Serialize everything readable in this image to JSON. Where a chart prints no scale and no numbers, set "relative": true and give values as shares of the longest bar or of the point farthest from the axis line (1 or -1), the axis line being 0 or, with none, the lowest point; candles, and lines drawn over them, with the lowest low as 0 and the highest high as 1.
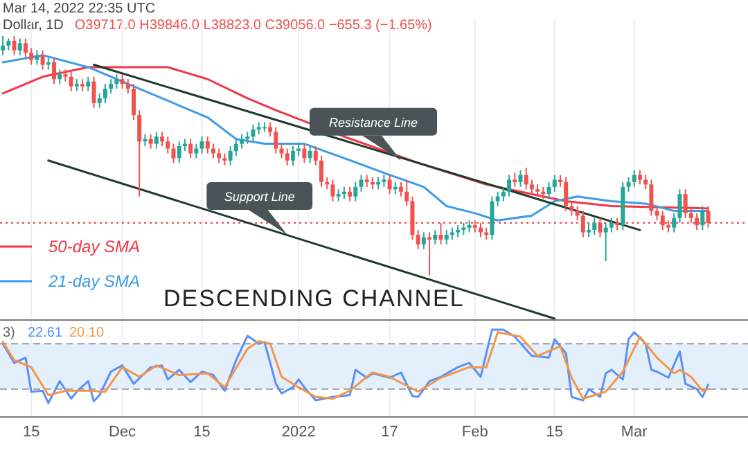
{
  "chart_data": [
    {
      "type": "candlestick",
      "title": "Dollar, 1D",
      "subtitle": "O39717.0 H39846.0 L38823.0 C39056.0 −655.3 (−1.65%)",
      "relative": true,
      "tick_labels": false,
      "grid": "x",
      "legend": "bottom left",
      "xlim": [
        "2021-11-09T12:00",
        "2022-03-21"
      ],
      "xticks": [
        {
          "value": "2021-11-15",
          "label": null
        },
        {
          "value": "2021-12-01",
          "label": null
        },
        {
          "value": "2021-12-15",
          "label": null
        },
        {
          "value": "2022-01-01",
          "label": null
        },
        {
          "value": "2022-01-17",
          "label": null
        },
        {
          "value": "2022-02-01",
          "label": null
        },
        {
          "value": "2022-02-15",
          "label": null
        },
        {
          "value": "2022-03-01",
          "label": null
        }
      ],
      "x": [
        "2021-11-10",
        "2021-11-11",
        "2021-11-12",
        "2021-11-13",
        "2021-11-14",
        "2021-11-15",
        "2021-11-16",
        "2021-11-17",
        "2021-11-18",
        "2021-11-19",
        "2021-11-20",
        "2021-11-21",
        "2021-11-22",
        "2021-11-23",
        "2021-11-24",
        "2021-11-25",
        "2021-11-26",
        "2021-11-27",
        "2021-11-28",
        "2021-11-29",
        "2021-11-30",
        "2021-12-01",
        "2021-12-02",
        "2021-12-03",
        "2021-12-04",
        "2021-12-05",
        "2021-12-06",
        "2021-12-07",
        "2021-12-08",
        "2021-12-09",
        "2021-12-10",
        "2021-12-11",
        "2021-12-12",
        "2021-12-13",
        "2021-12-14",
        "2021-12-15",
        "2021-12-16",
        "2021-12-17",
        "2021-12-18",
        "2021-12-19",
        "2021-12-20",
        "2021-12-21",
        "2021-12-22",
        "2021-12-23",
        "2021-12-24",
        "2021-12-25",
        "2021-12-26",
        "2021-12-27",
        "2021-12-28",
        "2021-12-29",
        "2021-12-30",
        "2021-12-31",
        "2022-01-01",
        "2022-01-02",
        "2022-01-03",
        "2022-01-04",
        "2022-01-05",
        "2022-01-06",
        "2022-01-07",
        "2022-01-08",
        "2022-01-09",
        "2022-01-10",
        "2022-01-11",
        "2022-01-12",
        "2022-01-13",
        "2022-01-14",
        "2022-01-15",
        "2022-01-16",
        "2022-01-17",
        "2022-01-18",
        "2022-01-19",
        "2022-01-20",
        "2022-01-21",
        "2022-01-22",
        "2022-01-23",
        "2022-01-24",
        "2022-01-25",
        "2022-01-26",
        "2022-01-27",
        "2022-01-28",
        "2022-01-29",
        "2022-01-30",
        "2022-01-31",
        "2022-02-01",
        "2022-02-02",
        "2022-02-03",
        "2022-02-04",
        "2022-02-05",
        "2022-02-06",
        "2022-02-07",
        "2022-02-08",
        "2022-02-09",
        "2022-02-10",
        "2022-02-11",
        "2022-02-12",
        "2022-02-13",
        "2022-02-14",
        "2022-02-15",
        "2022-02-16",
        "2022-02-17",
        "2022-02-18",
        "2022-02-19",
        "2022-02-20",
        "2022-02-21",
        "2022-02-22",
        "2022-02-23",
        "2022-02-24",
        "2022-02-25",
        "2022-02-26",
        "2022-02-27",
        "2022-02-28",
        "2022-03-01",
        "2022-03-02",
        "2022-03-03",
        "2022-03-04",
        "2022-03-05",
        "2022-03-06",
        "2022-03-07",
        "2022-03-08",
        "2022-03-09",
        "2022-03-10",
        "2022-03-11",
        "2022-03-12",
        "2022-03-13",
        "2022-03-14"
      ],
      "ohlc": [
        [
          0.94,
          1.0,
          0.92,
          0.96
        ],
        [
          0.96,
          0.99,
          0.94,
          0.98
        ],
        [
          0.98,
          1.0,
          0.92,
          0.94
        ],
        [
          0.94,
          0.99,
          0.92,
          0.97
        ],
        [
          0.97,
          0.99,
          0.91,
          0.93
        ],
        [
          0.93,
          0.95,
          0.88,
          0.9
        ],
        [
          0.9,
          0.94,
          0.88,
          0.92
        ],
        [
          0.92,
          0.94,
          0.86,
          0.88
        ],
        [
          0.88,
          0.91,
          0.86,
          0.89
        ],
        [
          0.89,
          0.91,
          0.8,
          0.82
        ],
        [
          0.82,
          0.86,
          0.8,
          0.84
        ],
        [
          0.84,
          0.86,
          0.81,
          0.83
        ],
        [
          0.83,
          0.85,
          0.77,
          0.79
        ],
        [
          0.79,
          0.82,
          0.77,
          0.8
        ],
        [
          0.8,
          0.82,
          0.77,
          0.79
        ],
        [
          0.79,
          0.83,
          0.77,
          0.81
        ],
        [
          0.81,
          0.83,
          0.7,
          0.72
        ],
        [
          0.72,
          0.76,
          0.7,
          0.74
        ],
        [
          0.74,
          0.8,
          0.72,
          0.78
        ],
        [
          0.78,
          0.82,
          0.76,
          0.8
        ],
        [
          0.8,
          0.84,
          0.78,
          0.82
        ],
        [
          0.82,
          0.84,
          0.78,
          0.8
        ],
        [
          0.8,
          0.82,
          0.76,
          0.78
        ],
        [
          0.78,
          0.8,
          0.65,
          0.67
        ],
        [
          0.67,
          0.69,
          0.33,
          0.56
        ],
        [
          0.56,
          0.59,
          0.54,
          0.57
        ],
        [
          0.57,
          0.59,
          0.53,
          0.55
        ],
        [
          0.55,
          0.6,
          0.53,
          0.58
        ],
        [
          0.58,
          0.6,
          0.54,
          0.56
        ],
        [
          0.56,
          0.58,
          0.51,
          0.53
        ],
        [
          0.53,
          0.55,
          0.47,
          0.49
        ],
        [
          0.49,
          0.56,
          0.47,
          0.54
        ],
        [
          0.54,
          0.57,
          0.52,
          0.55
        ],
        [
          0.55,
          0.57,
          0.49,
          0.51
        ],
        [
          0.51,
          0.55,
          0.49,
          0.53
        ],
        [
          0.53,
          0.58,
          0.51,
          0.56
        ],
        [
          0.56,
          0.58,
          0.51,
          0.53
        ],
        [
          0.53,
          0.55,
          0.49,
          0.51
        ],
        [
          0.51,
          0.53,
          0.47,
          0.49
        ],
        [
          0.49,
          0.51,
          0.46,
          0.48
        ],
        [
          0.48,
          0.54,
          0.46,
          0.52
        ],
        [
          0.52,
          0.57,
          0.5,
          0.55
        ],
        [
          0.55,
          0.59,
          0.53,
          0.57
        ],
        [
          0.57,
          0.6,
          0.55,
          0.58
        ],
        [
          0.58,
          0.63,
          0.56,
          0.61
        ],
        [
          0.61,
          0.64,
          0.59,
          0.62
        ],
        [
          0.62,
          0.64,
          0.6,
          0.62
        ],
        [
          0.62,
          0.64,
          0.58,
          0.6
        ],
        [
          0.6,
          0.62,
          0.51,
          0.53
        ],
        [
          0.53,
          0.55,
          0.49,
          0.51
        ],
        [
          0.51,
          0.53,
          0.46,
          0.48
        ],
        [
          0.48,
          0.54,
          0.46,
          0.52
        ],
        [
          0.52,
          0.55,
          0.5,
          0.53
        ],
        [
          0.53,
          0.55,
          0.47,
          0.49
        ],
        [
          0.49,
          0.54,
          0.47,
          0.52
        ],
        [
          0.52,
          0.54,
          0.46,
          0.48
        ],
        [
          0.48,
          0.5,
          0.37,
          0.39
        ],
        [
          0.39,
          0.41,
          0.36,
          0.38
        ],
        [
          0.38,
          0.4,
          0.31,
          0.33
        ],
        [
          0.33,
          0.36,
          0.31,
          0.34
        ],
        [
          0.34,
          0.37,
          0.32,
          0.35
        ],
        [
          0.35,
          0.37,
          0.31,
          0.33
        ],
        [
          0.33,
          0.39,
          0.31,
          0.37
        ],
        [
          0.37,
          0.42,
          0.35,
          0.4
        ],
        [
          0.4,
          0.42,
          0.37,
          0.39
        ],
        [
          0.39,
          0.41,
          0.36,
          0.38
        ],
        [
          0.38,
          0.41,
          0.36,
          0.39
        ],
        [
          0.39,
          0.42,
          0.37,
          0.4
        ],
        [
          0.4,
          0.42,
          0.34,
          0.36
        ],
        [
          0.36,
          0.39,
          0.34,
          0.37
        ],
        [
          0.37,
          0.39,
          0.33,
          0.35
        ],
        [
          0.35,
          0.4,
          0.29,
          0.31
        ],
        [
          0.31,
          0.33,
          0.15,
          0.17
        ],
        [
          0.17,
          0.19,
          0.11,
          0.13
        ],
        [
          0.13,
          0.18,
          0.11,
          0.16
        ],
        [
          0.16,
          0.18,
          0.0,
          0.15
        ],
        [
          0.15,
          0.19,
          0.13,
          0.17
        ],
        [
          0.17,
          0.22,
          0.13,
          0.15
        ],
        [
          0.15,
          0.19,
          0.13,
          0.17
        ],
        [
          0.17,
          0.2,
          0.15,
          0.18
        ],
        [
          0.18,
          0.21,
          0.16,
          0.19
        ],
        [
          0.19,
          0.22,
          0.17,
          0.2
        ],
        [
          0.2,
          0.23,
          0.18,
          0.21
        ],
        [
          0.21,
          0.23,
          0.18,
          0.2
        ],
        [
          0.2,
          0.22,
          0.16,
          0.18
        ],
        [
          0.18,
          0.2,
          0.15,
          0.17
        ],
        [
          0.17,
          0.33,
          0.15,
          0.31
        ],
        [
          0.31,
          0.35,
          0.29,
          0.33
        ],
        [
          0.33,
          0.37,
          0.31,
          0.35
        ],
        [
          0.35,
          0.42,
          0.33,
          0.4
        ],
        [
          0.4,
          0.43,
          0.37,
          0.39
        ],
        [
          0.39,
          0.44,
          0.37,
          0.42
        ],
        [
          0.42,
          0.45,
          0.36,
          0.38
        ],
        [
          0.38,
          0.4,
          0.34,
          0.36
        ],
        [
          0.36,
          0.38,
          0.33,
          0.35
        ],
        [
          0.35,
          0.37,
          0.32,
          0.34
        ],
        [
          0.34,
          0.39,
          0.32,
          0.37
        ],
        [
          0.37,
          0.42,
          0.35,
          0.4
        ],
        [
          0.4,
          0.42,
          0.37,
          0.39
        ],
        [
          0.39,
          0.41,
          0.27,
          0.29
        ],
        [
          0.29,
          0.31,
          0.25,
          0.27
        ],
        [
          0.27,
          0.29,
          0.23,
          0.25
        ],
        [
          0.25,
          0.27,
          0.16,
          0.18
        ],
        [
          0.18,
          0.22,
          0.16,
          0.19
        ],
        [
          0.19,
          0.24,
          0.17,
          0.22
        ],
        [
          0.22,
          0.24,
          0.16,
          0.18
        ],
        [
          0.18,
          0.22,
          0.06,
          0.2
        ],
        [
          0.2,
          0.24,
          0.18,
          0.22
        ],
        [
          0.22,
          0.24,
          0.19,
          0.21
        ],
        [
          0.21,
          0.39,
          0.19,
          0.37
        ],
        [
          0.37,
          0.41,
          0.35,
          0.39
        ],
        [
          0.39,
          0.44,
          0.37,
          0.42
        ],
        [
          0.42,
          0.44,
          0.38,
          0.4
        ],
        [
          0.4,
          0.42,
          0.36,
          0.38
        ],
        [
          0.38,
          0.4,
          0.25,
          0.27
        ],
        [
          0.27,
          0.29,
          0.23,
          0.25
        ],
        [
          0.25,
          0.27,
          0.19,
          0.21
        ],
        [
          0.21,
          0.23,
          0.18,
          0.2
        ],
        [
          0.2,
          0.26,
          0.18,
          0.24
        ],
        [
          0.24,
          0.36,
          0.22,
          0.34
        ],
        [
          0.34,
          0.36,
          0.24,
          0.26
        ],
        [
          0.26,
          0.28,
          0.22,
          0.24
        ],
        [
          0.24,
          0.26,
          0.19,
          0.21
        ],
        [
          0.21,
          0.29,
          0.19,
          0.27
        ],
        [
          0.27,
          0.29,
          0.2,
          0.22
        ]
      ],
      "series": [
        {
          "type": "line",
          "name": "50-day SMA",
          "color": "#f23645",
          "x": [
            "2021-11-10",
            "2021-11-17",
            "2021-11-25",
            "2021-12-09",
            "2021-12-16",
            "2021-12-23",
            "2021-12-28",
            "2022-01-09",
            "2022-01-22",
            "2022-02-03",
            "2022-02-11",
            "2022-02-17",
            "2022-02-25",
            "2022-03-14"
          ],
          "values": [
            0.76,
            0.83,
            0.87,
            0.87,
            0.82,
            0.74,
            0.69,
            0.58,
            0.47,
            0.38,
            0.34,
            0.31,
            0.29,
            0.28
          ]
        },
        {
          "type": "line",
          "name": "21-day SMA",
          "color": "#3d9be9",
          "x": [
            "2021-11-10",
            "2021-11-17",
            "2021-11-25",
            "2021-12-04",
            "2021-12-16",
            "2021-12-21",
            "2021-12-26",
            "2022-01-02",
            "2022-01-09",
            "2022-01-17",
            "2022-01-23",
            "2022-01-27",
            "2022-02-01",
            "2022-02-05",
            "2022-02-11",
            "2022-02-15",
            "2022-02-19",
            "2022-02-25",
            "2022-03-03",
            "2022-03-08",
            "2022-03-14"
          ],
          "values": [
            0.89,
            0.92,
            0.87,
            0.78,
            0.66,
            0.57,
            0.55,
            0.55,
            0.49,
            0.42,
            0.37,
            0.29,
            0.26,
            0.23,
            0.25,
            0.31,
            0.33,
            0.31,
            0.3,
            0.27,
            0.27
          ]
        },
        {
          "type": "line",
          "color": "#1f3b2d",
          "x": [
            "2021-11-26",
            "2022-03-02"
          ],
          "values": [
            0.88,
            0.19
          ]
        },
        {
          "type": "line",
          "color": "#1f3b2d",
          "x": [
            "2021-11-18",
            "2022-02-15"
          ],
          "values": [
            0.48,
            -0.18
          ]
        }
      ],
      "ref_lines": [
        {
          "axis": "y",
          "value": 0.22,
          "color": "#f23645",
          "line_style": "dotted"
        }
      ],
      "annotations": [
        {
          "text": "Resistance Line",
          "x": "2022-01-19",
          "y": 0.48
        },
        {
          "text": "Support Line",
          "x": "2021-12-30",
          "y": 0.17
        },
        "Mar 14, 2022 22:35 UTC",
        "DESCENDING CHANNEL"
      ]
    },
    {
      "type": "line",
      "relative": true,
      "tick_labels": "x",
      "grid": "x",
      "legend": "top left",
      "xlim": [
        "2021-11-09T12:00",
        "2022-03-21"
      ],
      "xticks": [
        {
          "value": "2021-11-15",
          "label": "15"
        },
        {
          "value": "2021-12-01",
          "label": "Dec"
        },
        {
          "value": "2021-12-15",
          "label": "15"
        },
        {
          "value": "2022-01-01",
          "label": "2022"
        },
        {
          "value": "2022-01-17",
          "label": "17"
        },
        {
          "value": "2022-02-01",
          "label": "Feb"
        },
        {
          "value": "2022-02-15",
          "label": "15"
        },
        {
          "value": "2022-03-01",
          "label": "Mar"
        }
      ],
      "bands": [
        {
          "axis": "y",
          "from": 0.32,
          "to": 0.84,
          "color": "#e3f0fc"
        }
      ],
      "ref_lines": [
        {
          "axis": "y",
          "value": 0.84,
          "color": "#9a9a9a",
          "line_style": "dashed"
        },
        {
          "axis": "y",
          "value": 0.32,
          "color": "#9a9a9a",
          "line_style": "dashed"
        }
      ],
      "annotations": [
        "3)"
      ],
      "series": [
        {
          "name": "22.61",
          "color": "#5b8ff9",
          "x": [
            "2021-11-10",
            "2021-11-12",
            "2021-11-14",
            "2021-11-15",
            "2021-11-17",
            "2021-11-18",
            "2021-11-20",
            "2021-11-22",
            "2021-11-23",
            "2021-11-25",
            "2021-11-26",
            "2021-11-27",
            "2021-11-29",
            "2021-12-01",
            "2021-12-03",
            "2021-12-06",
            "2021-12-08",
            "2021-12-09",
            "2021-12-11",
            "2021-12-13",
            "2021-12-15",
            "2021-12-17",
            "2021-12-19",
            "2021-12-21",
            "2021-12-23",
            "2021-12-25",
            "2021-12-26",
            "2021-12-28",
            "2021-12-29",
            "2021-12-31",
            "2022-01-01",
            "2022-01-02",
            "2022-01-04",
            "2022-01-07",
            "2022-01-10",
            "2022-01-11",
            "2022-01-13",
            "2022-01-14",
            "2022-01-17",
            "2022-01-19",
            "2022-01-21",
            "2022-01-22",
            "2022-01-24",
            "2022-01-26",
            "2022-01-29",
            "2022-01-31",
            "2022-02-02",
            "2022-02-04",
            "2022-02-06",
            "2022-02-08",
            "2022-02-11",
            "2022-02-14",
            "2022-02-15",
            "2022-02-17",
            "2022-02-18",
            "2022-02-20",
            "2022-02-21",
            "2022-02-23",
            "2022-02-24",
            "2022-02-25",
            "2022-02-27",
            "2022-02-28",
            "2022-03-01",
            "2022-03-03",
            "2022-03-04",
            "2022-03-05",
            "2022-03-07",
            "2022-03-09",
            "2022-03-10",
            "2022-03-12",
            "2022-03-13",
            "2022-03-14"
          ],
          "values": [
            0.84,
            0.62,
            0.68,
            0.29,
            0.3,
            0.16,
            0.41,
            0.21,
            0.29,
            0.41,
            0.18,
            0.25,
            0.52,
            0.59,
            0.38,
            0.57,
            0.59,
            0.43,
            0.54,
            0.4,
            0.52,
            0.48,
            0.3,
            0.65,
            0.93,
            0.84,
            0.86,
            0.38,
            0.27,
            0.34,
            0.43,
            0.34,
            0.19,
            0.23,
            0.25,
            0.54,
            0.45,
            0.5,
            0.45,
            0.51,
            0.24,
            0.23,
            0.41,
            0.46,
            0.57,
            0.62,
            0.46,
            1.0,
            1.0,
            0.92,
            0.7,
            0.68,
            0.89,
            0.73,
            0.23,
            0.19,
            0.32,
            0.23,
            0.5,
            0.54,
            0.43,
            0.89,
            0.97,
            0.84,
            0.54,
            0.52,
            0.45,
            0.75,
            0.38,
            0.32,
            0.23,
            0.37
          ]
        },
        {
          "name": "20.10",
          "color": "#f5954a",
          "x": [
            "2021-11-10",
            "2021-11-12",
            "2021-11-15",
            "2021-11-18",
            "2021-11-21",
            "2021-11-25",
            "2021-11-28",
            "2021-12-01",
            "2021-12-04",
            "2021-12-07",
            "2021-12-11",
            "2021-12-16",
            "2021-12-19",
            "2021-12-23",
            "2021-12-25",
            "2021-12-27",
            "2021-12-29",
            "2022-01-01",
            "2022-01-04",
            "2022-01-07",
            "2022-01-10",
            "2022-01-13",
            "2022-01-14",
            "2022-01-17",
            "2022-01-22",
            "2022-01-26",
            "2022-01-31",
            "2022-02-03",
            "2022-02-05",
            "2022-02-09",
            "2022-02-12",
            "2022-02-16",
            "2022-02-18",
            "2022-02-20",
            "2022-02-24",
            "2022-02-27",
            "2022-03-02",
            "2022-03-05",
            "2022-03-08",
            "2022-03-09",
            "2022-03-11",
            "2022-03-13",
            "2022-03-14"
          ],
          "values": [
            0.86,
            0.65,
            0.57,
            0.25,
            0.3,
            0.3,
            0.29,
            0.57,
            0.46,
            0.59,
            0.48,
            0.5,
            0.34,
            0.78,
            0.87,
            0.84,
            0.46,
            0.34,
            0.23,
            0.21,
            0.3,
            0.46,
            0.51,
            0.46,
            0.29,
            0.45,
            0.57,
            0.57,
            0.97,
            0.92,
            0.7,
            0.81,
            0.45,
            0.21,
            0.29,
            0.52,
            0.92,
            0.68,
            0.5,
            0.54,
            0.46,
            0.3,
            0.32
          ]
        }
      ]
    }
  ]
}
